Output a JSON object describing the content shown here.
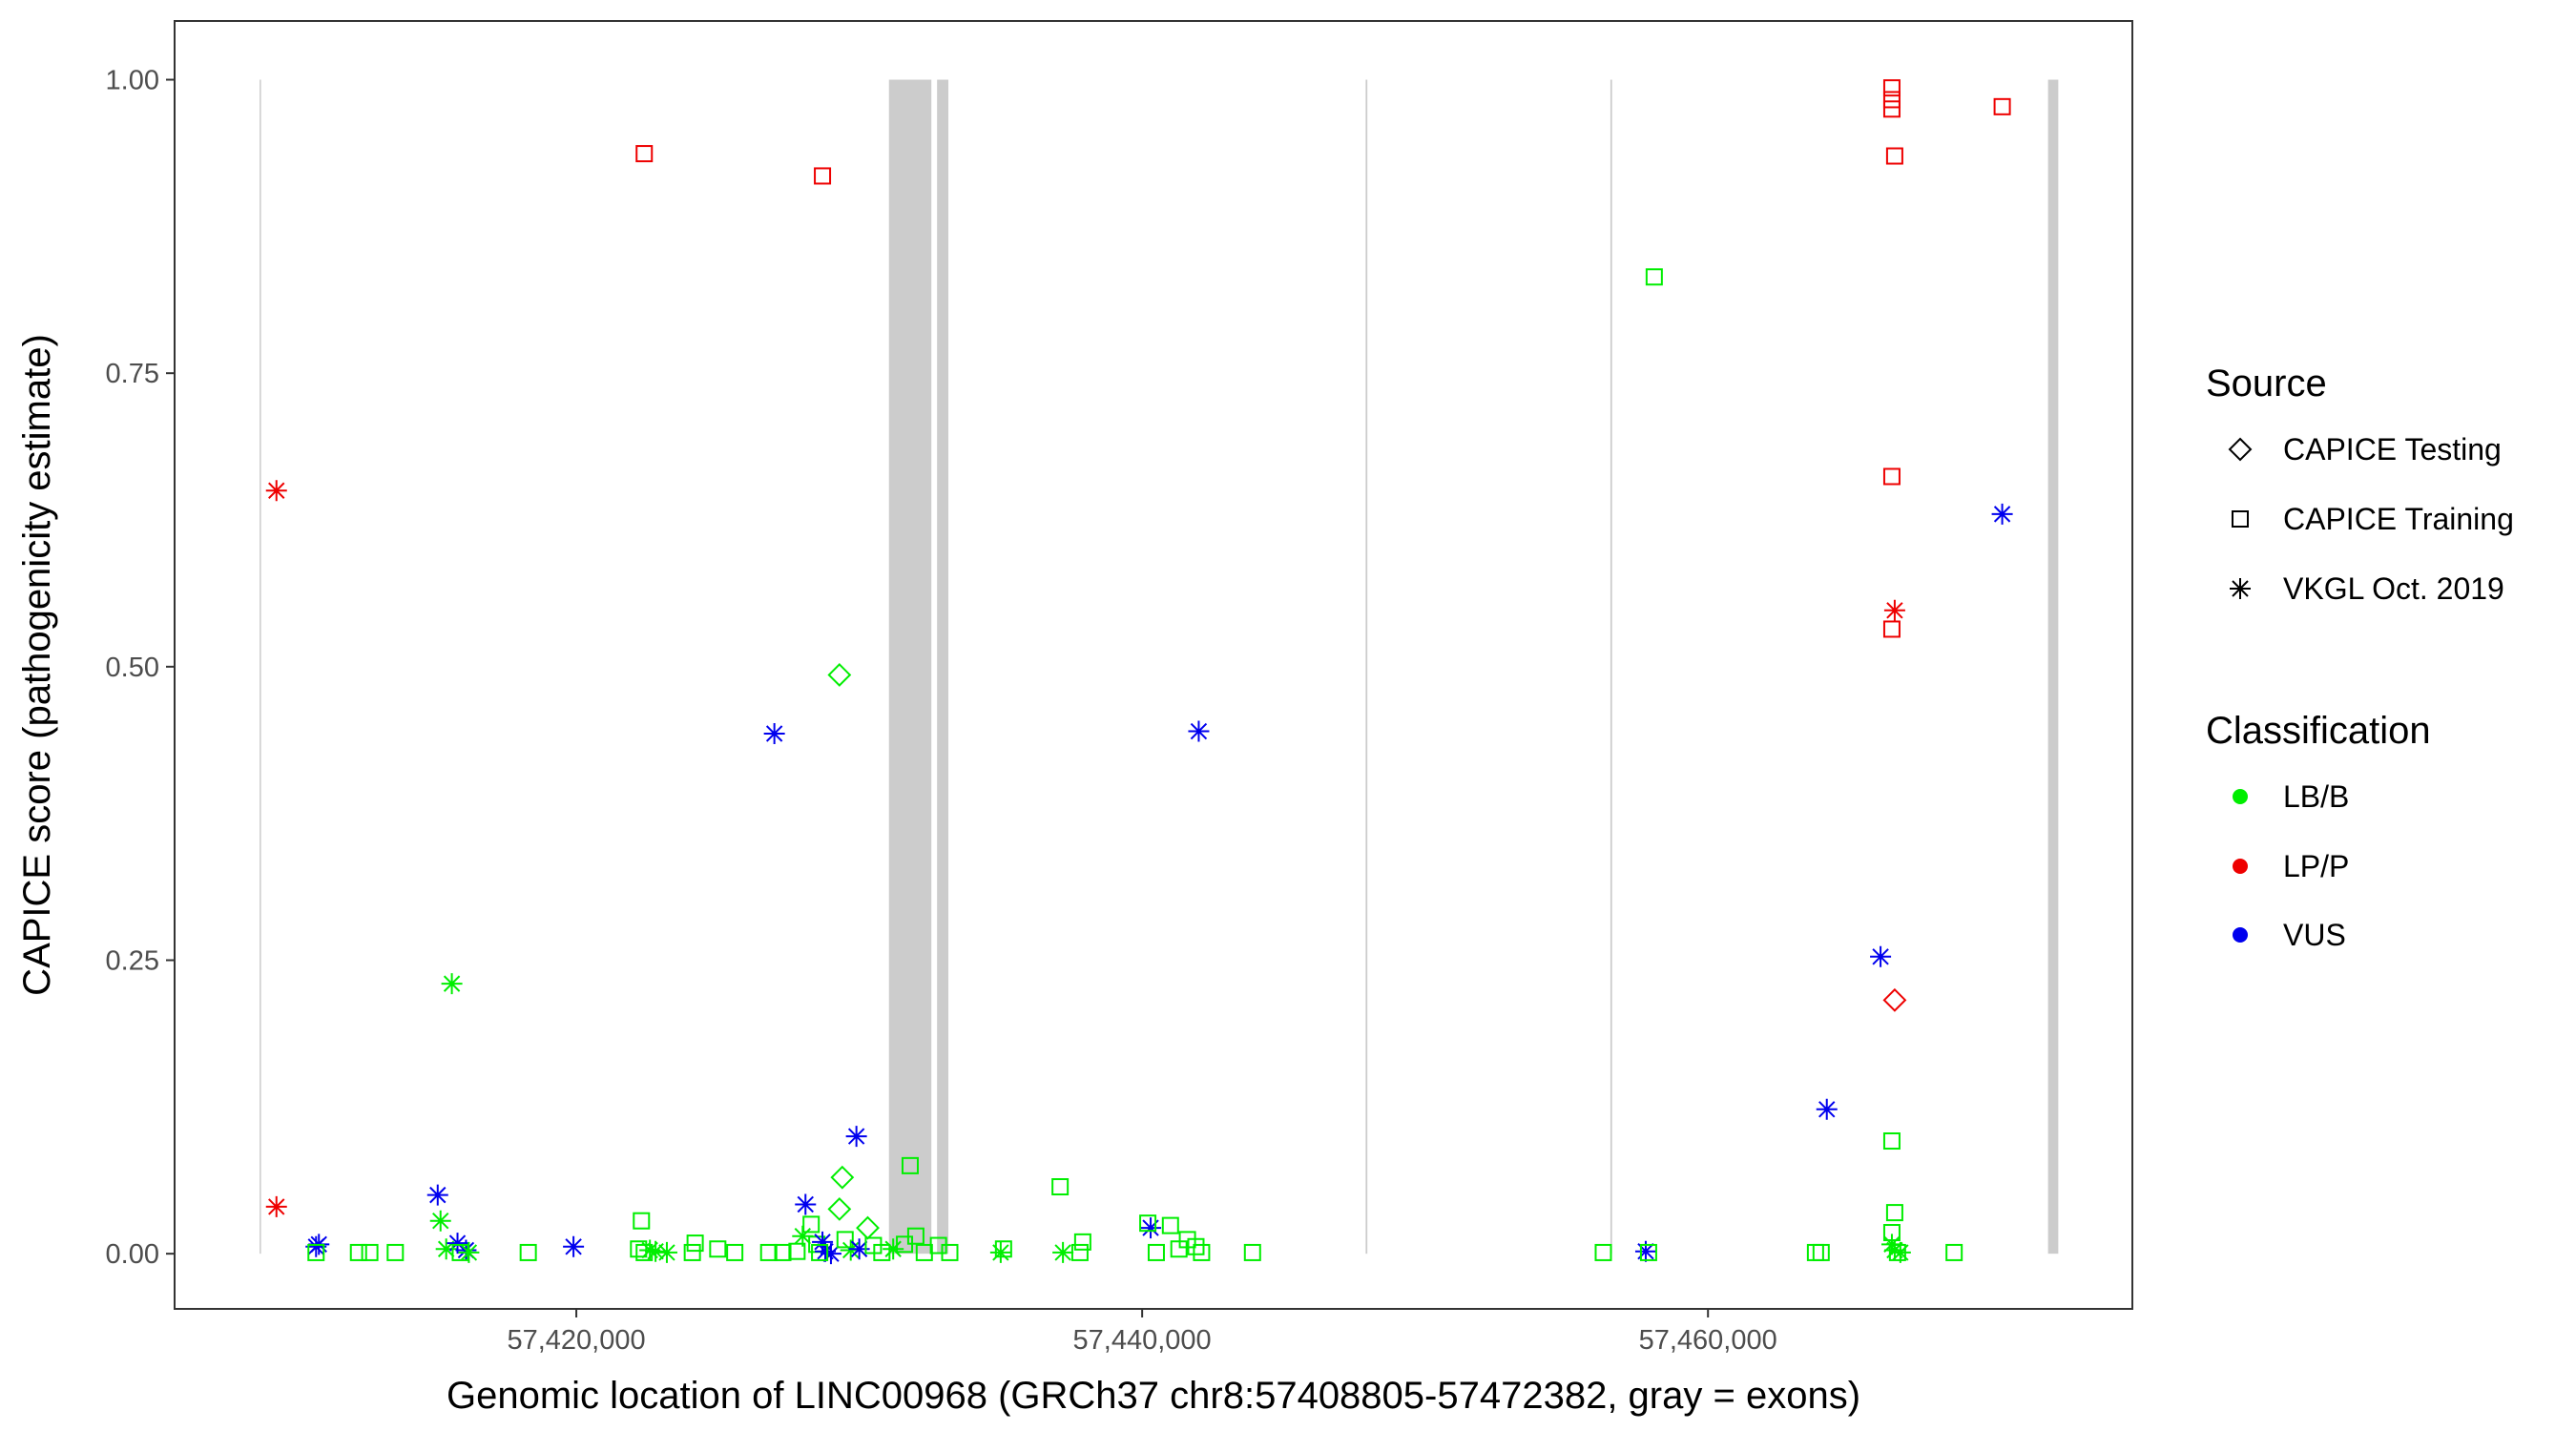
{
  "chart_data": {
    "type": "scatter",
    "xlabel": "Genomic location of LINC00968 (GRCh37 chr8:57408805-57472382, gray = exons)",
    "ylabel": "CAPICE score (pathogenicity estimate)",
    "xlim": [
      57405800,
      57475000
    ],
    "ylim": [
      -0.047,
      1.05
    ],
    "x_ticks": [
      57420000,
      57440000,
      57460000
    ],
    "x_tick_labels": [
      "57,420,000",
      "57,440,000",
      "57,460,000"
    ],
    "y_ticks": [
      0,
      0.25,
      0.5,
      0.75,
      1.0
    ],
    "y_tick_labels": [
      "0.00",
      "0.25",
      "0.50",
      "0.75",
      "1.00"
    ],
    "grid": false,
    "exon_color": "#cccccc",
    "exons": [
      {
        "start": 57408805,
        "end": 57408850
      },
      {
        "start": 57431050,
        "end": 57432550
      },
      {
        "start": 57432750,
        "end": 57433150
      },
      {
        "start": 57447900,
        "end": 57447960
      },
      {
        "start": 57456550,
        "end": 57456610
      },
      {
        "start": 57472020,
        "end": 57472382
      }
    ],
    "legend": {
      "placement": "right",
      "source_title": "Source",
      "source_items": [
        {
          "label": "CAPICE Testing",
          "shape": "diamond"
        },
        {
          "label": "CAPICE Training",
          "shape": "square"
        },
        {
          "label": "VKGL Oct. 2019",
          "shape": "asterisk"
        }
      ],
      "class_title": "Classification",
      "class_items": [
        {
          "label": "LB/B",
          "color": "#00ee00"
        },
        {
          "label": "LP/P",
          "color": "#ee0000"
        },
        {
          "label": "VUS",
          "color": "#0000ee"
        }
      ]
    },
    "points": [
      {
        "x": 57409400,
        "y": 0.65,
        "shape": "asterisk",
        "cls": "LP/P"
      },
      {
        "x": 57409400,
        "y": 0.04,
        "shape": "asterisk",
        "cls": "LP/P"
      },
      {
        "x": 57410900,
        "y": 0.008,
        "shape": "asterisk",
        "cls": "VUS"
      },
      {
        "x": 57410800,
        "y": 0.006,
        "shape": "asterisk",
        "cls": "VUS"
      },
      {
        "x": 57410800,
        "y": 0.001,
        "shape": "square",
        "cls": "LB/B"
      },
      {
        "x": 57412300,
        "y": 0.001,
        "shape": "square",
        "cls": "LB/B"
      },
      {
        "x": 57412700,
        "y": 0.001,
        "shape": "square",
        "cls": "LB/B"
      },
      {
        "x": 57413600,
        "y": 0.001,
        "shape": "square",
        "cls": "LB/B"
      },
      {
        "x": 57415100,
        "y": 0.05,
        "shape": "asterisk",
        "cls": "VUS"
      },
      {
        "x": 57415200,
        "y": 0.028,
        "shape": "asterisk",
        "cls": "LB/B"
      },
      {
        "x": 57415600,
        "y": 0.23,
        "shape": "asterisk",
        "cls": "LB/B"
      },
      {
        "x": 57415400,
        "y": 0.004,
        "shape": "asterisk",
        "cls": "LB/B"
      },
      {
        "x": 57415800,
        "y": 0.009,
        "shape": "asterisk",
        "cls": "VUS"
      },
      {
        "x": 57416100,
        "y": 0.003,
        "shape": "asterisk",
        "cls": "VUS"
      },
      {
        "x": 57415900,
        "y": 0.001,
        "shape": "square",
        "cls": "LB/B"
      },
      {
        "x": 57416200,
        "y": 0.001,
        "shape": "asterisk",
        "cls": "LB/B"
      },
      {
        "x": 57418300,
        "y": 0.001,
        "shape": "square",
        "cls": "LB/B"
      },
      {
        "x": 57419900,
        "y": 0.006,
        "shape": "asterisk",
        "cls": "VUS"
      },
      {
        "x": 57422400,
        "y": 0.937,
        "shape": "square",
        "cls": "LP/P"
      },
      {
        "x": 57422300,
        "y": 0.028,
        "shape": "square",
        "cls": "LB/B"
      },
      {
        "x": 57422200,
        "y": 0.004,
        "shape": "square",
        "cls": "LB/B"
      },
      {
        "x": 57422400,
        "y": 0.001,
        "shape": "square",
        "cls": "LB/B"
      },
      {
        "x": 57422600,
        "y": 0.003,
        "shape": "asterisk",
        "cls": "LB/B"
      },
      {
        "x": 57422800,
        "y": 0.002,
        "shape": "asterisk",
        "cls": "LB/B"
      },
      {
        "x": 57423200,
        "y": 0.001,
        "shape": "asterisk",
        "cls": "LB/B"
      },
      {
        "x": 57424200,
        "y": 0.009,
        "shape": "square",
        "cls": "LB/B"
      },
      {
        "x": 57424100,
        "y": 0.001,
        "shape": "square",
        "cls": "LB/B"
      },
      {
        "x": 57425000,
        "y": 0.004,
        "shape": "square",
        "cls": "LB/B"
      },
      {
        "x": 57425600,
        "y": 0.001,
        "shape": "square",
        "cls": "LB/B"
      },
      {
        "x": 57427000,
        "y": 0.443,
        "shape": "asterisk",
        "cls": "VUS"
      },
      {
        "x": 57426800,
        "y": 0.001,
        "shape": "square",
        "cls": "LB/B"
      },
      {
        "x": 57427300,
        "y": 0.001,
        "shape": "square",
        "cls": "LB/B"
      },
      {
        "x": 57427800,
        "y": 0.002,
        "shape": "square",
        "cls": "LB/B"
      },
      {
        "x": 57428100,
        "y": 0.042,
        "shape": "asterisk",
        "cls": "VUS"
      },
      {
        "x": 57428000,
        "y": 0.015,
        "shape": "asterisk",
        "cls": "LB/B"
      },
      {
        "x": 57428300,
        "y": 0.025,
        "shape": "square",
        "cls": "LB/B"
      },
      {
        "x": 57428500,
        "y": 0.008,
        "shape": "square",
        "cls": "LB/B"
      },
      {
        "x": 57428700,
        "y": 0.918,
        "shape": "square",
        "cls": "LP/P"
      },
      {
        "x": 57428700,
        "y": 0.01,
        "shape": "asterisk",
        "cls": "VUS"
      },
      {
        "x": 57428800,
        "y": 0.002,
        "shape": "asterisk",
        "cls": "VUS"
      },
      {
        "x": 57429000,
        "y": 0.0,
        "shape": "asterisk",
        "cls": "VUS"
      },
      {
        "x": 57428600,
        "y": 0.001,
        "shape": "square",
        "cls": "LB/B"
      },
      {
        "x": 57429300,
        "y": 0.493,
        "shape": "diamond",
        "cls": "LB/B"
      },
      {
        "x": 57429400,
        "y": 0.065,
        "shape": "diamond",
        "cls": "LB/B"
      },
      {
        "x": 57429300,
        "y": 0.038,
        "shape": "diamond",
        "cls": "LB/B"
      },
      {
        "x": 57429500,
        "y": 0.012,
        "shape": "square",
        "cls": "LB/B"
      },
      {
        "x": 57429700,
        "y": 0.003,
        "shape": "asterisk",
        "cls": "LB/B"
      },
      {
        "x": 57429900,
        "y": 0.1,
        "shape": "asterisk",
        "cls": "VUS"
      },
      {
        "x": 57430000,
        "y": 0.004,
        "shape": "asterisk",
        "cls": "VUS"
      },
      {
        "x": 57430300,
        "y": 0.022,
        "shape": "diamond",
        "cls": "LB/B"
      },
      {
        "x": 57430500,
        "y": 0.007,
        "shape": "square",
        "cls": "LB/B"
      },
      {
        "x": 57430800,
        "y": 0.001,
        "shape": "square",
        "cls": "LB/B"
      },
      {
        "x": 57431200,
        "y": 0.004,
        "shape": "asterisk",
        "cls": "LB/B"
      },
      {
        "x": 57431600,
        "y": 0.008,
        "shape": "square",
        "cls": "LB/B"
      },
      {
        "x": 57431800,
        "y": 0.075,
        "shape": "square",
        "cls": "LB/B"
      },
      {
        "x": 57432000,
        "y": 0.015,
        "shape": "square",
        "cls": "LB/B"
      },
      {
        "x": 57432300,
        "y": 0.001,
        "shape": "square",
        "cls": "LB/B"
      },
      {
        "x": 57432800,
        "y": 0.007,
        "shape": "square",
        "cls": "LB/B"
      },
      {
        "x": 57433200,
        "y": 0.001,
        "shape": "square",
        "cls": "LB/B"
      },
      {
        "x": 57435100,
        "y": 0.004,
        "shape": "square",
        "cls": "LB/B"
      },
      {
        "x": 57435000,
        "y": 0.001,
        "shape": "asterisk",
        "cls": "LB/B"
      },
      {
        "x": 57437100,
        "y": 0.057,
        "shape": "square",
        "cls": "LB/B"
      },
      {
        "x": 57437200,
        "y": 0.001,
        "shape": "asterisk",
        "cls": "LB/B"
      },
      {
        "x": 57437900,
        "y": 0.01,
        "shape": "square",
        "cls": "LB/B"
      },
      {
        "x": 57437800,
        "y": 0.001,
        "shape": "square",
        "cls": "LB/B"
      },
      {
        "x": 57440300,
        "y": 0.022,
        "shape": "asterisk",
        "cls": "VUS"
      },
      {
        "x": 57440200,
        "y": 0.026,
        "shape": "square",
        "cls": "LB/B"
      },
      {
        "x": 57440500,
        "y": 0.001,
        "shape": "square",
        "cls": "LB/B"
      },
      {
        "x": 57441000,
        "y": 0.024,
        "shape": "square",
        "cls": "LB/B"
      },
      {
        "x": 57441300,
        "y": 0.004,
        "shape": "square",
        "cls": "LB/B"
      },
      {
        "x": 57441600,
        "y": 0.012,
        "shape": "square",
        "cls": "LB/B"
      },
      {
        "x": 57441900,
        "y": 0.006,
        "shape": "square",
        "cls": "LB/B"
      },
      {
        "x": 57442000,
        "y": 0.445,
        "shape": "asterisk",
        "cls": "VUS"
      },
      {
        "x": 57442100,
        "y": 0.001,
        "shape": "square",
        "cls": "LB/B"
      },
      {
        "x": 57443900,
        "y": 0.001,
        "shape": "square",
        "cls": "LB/B"
      },
      {
        "x": 57456300,
        "y": 0.001,
        "shape": "square",
        "cls": "LB/B"
      },
      {
        "x": 57458100,
        "y": 0.832,
        "shape": "square",
        "cls": "LB/B"
      },
      {
        "x": 57457800,
        "y": 0.002,
        "shape": "asterisk",
        "cls": "VUS"
      },
      {
        "x": 57457900,
        "y": 0.001,
        "shape": "square",
        "cls": "LB/B"
      },
      {
        "x": 57463800,
        "y": 0.001,
        "shape": "square",
        "cls": "LB/B"
      },
      {
        "x": 57464000,
        "y": 0.001,
        "shape": "square",
        "cls": "LB/B"
      },
      {
        "x": 57464200,
        "y": 0.123,
        "shape": "asterisk",
        "cls": "VUS"
      },
      {
        "x": 57466100,
        "y": 0.253,
        "shape": "asterisk",
        "cls": "VUS"
      },
      {
        "x": 57466500,
        "y": 0.993,
        "shape": "square",
        "cls": "LP/P"
      },
      {
        "x": 57466500,
        "y": 0.983,
        "shape": "square",
        "cls": "LP/P"
      },
      {
        "x": 57466500,
        "y": 0.975,
        "shape": "square",
        "cls": "LP/P"
      },
      {
        "x": 57466600,
        "y": 0.935,
        "shape": "square",
        "cls": "LP/P"
      },
      {
        "x": 57466500,
        "y": 0.662,
        "shape": "square",
        "cls": "LP/P"
      },
      {
        "x": 57466600,
        "y": 0.548,
        "shape": "asterisk",
        "cls": "LP/P"
      },
      {
        "x": 57466500,
        "y": 0.532,
        "shape": "square",
        "cls": "LP/P"
      },
      {
        "x": 57466600,
        "y": 0.216,
        "shape": "diamond",
        "cls": "LP/P"
      },
      {
        "x": 57466500,
        "y": 0.096,
        "shape": "square",
        "cls": "LB/B"
      },
      {
        "x": 57466600,
        "y": 0.035,
        "shape": "square",
        "cls": "LB/B"
      },
      {
        "x": 57466500,
        "y": 0.018,
        "shape": "square",
        "cls": "LB/B"
      },
      {
        "x": 57466500,
        "y": 0.008,
        "shape": "asterisk",
        "cls": "LB/B"
      },
      {
        "x": 57466600,
        "y": 0.003,
        "shape": "asterisk",
        "cls": "LB/B"
      },
      {
        "x": 57466700,
        "y": 0.001,
        "shape": "square",
        "cls": "LB/B"
      },
      {
        "x": 57466800,
        "y": 0.001,
        "shape": "asterisk",
        "cls": "LB/B"
      },
      {
        "x": 57468700,
        "y": 0.001,
        "shape": "square",
        "cls": "LB/B"
      },
      {
        "x": 57470400,
        "y": 0.977,
        "shape": "square",
        "cls": "LP/P"
      },
      {
        "x": 57470400,
        "y": 0.63,
        "shape": "asterisk",
        "cls": "VUS"
      }
    ]
  }
}
